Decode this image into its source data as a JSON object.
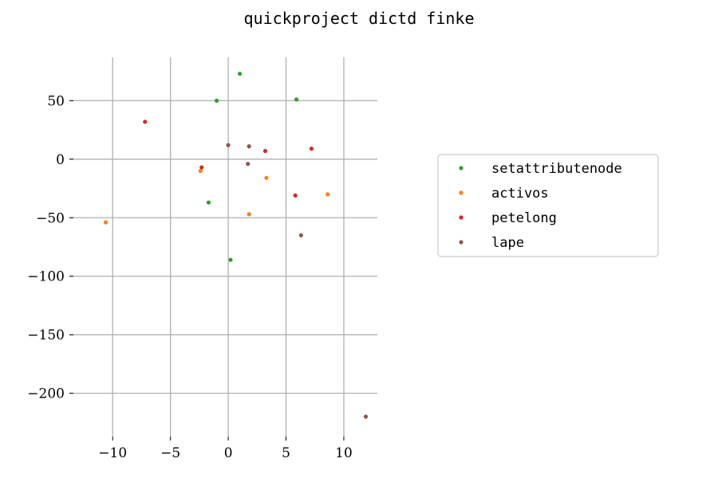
{
  "chart_data": {
    "type": "scatter",
    "title": "quickproject dictd finke",
    "xlabel": "",
    "ylabel": "",
    "xlim": [
      -12.5,
      12.9
    ],
    "ylim": [
      -237,
      87
    ],
    "x_ticks": [
      -10,
      -5,
      0,
      5,
      10
    ],
    "y_ticks": [
      50,
      0,
      -50,
      -100,
      -150,
      -200
    ],
    "x_tick_labels": [
      "−10",
      "−5",
      "0",
      "5",
      "10"
    ],
    "y_tick_labels": [
      "50",
      "0",
      "−50",
      "−100",
      "−150",
      "−200"
    ],
    "grid": true,
    "legend_position": "right",
    "series": [
      {
        "name": "setattributenode",
        "color": "#2ca02c",
        "points": [
          [
            1.0,
            73
          ],
          [
            -1.0,
            50
          ],
          [
            5.9,
            51
          ],
          [
            -1.7,
            -37
          ],
          [
            0.2,
            -86
          ]
        ]
      },
      {
        "name": "activos",
        "color": "#ff7f0e",
        "points": [
          [
            -2.4,
            -10
          ],
          [
            3.3,
            -16
          ],
          [
            8.6,
            -30
          ],
          [
            1.8,
            -47
          ],
          [
            -10.6,
            -54
          ]
        ]
      },
      {
        "name": "petelong",
        "color": "#d62728",
        "points": [
          [
            -7.2,
            32
          ],
          [
            3.2,
            7
          ],
          [
            7.2,
            9
          ],
          [
            -2.3,
            -7
          ],
          [
            5.8,
            -31
          ]
        ]
      },
      {
        "name": "lape",
        "color": "#8c564b",
        "points": [
          [
            0.0,
            12
          ],
          [
            1.8,
            11
          ],
          [
            1.7,
            -4
          ],
          [
            6.3,
            -65
          ],
          [
            11.9,
            -220
          ]
        ]
      }
    ]
  }
}
